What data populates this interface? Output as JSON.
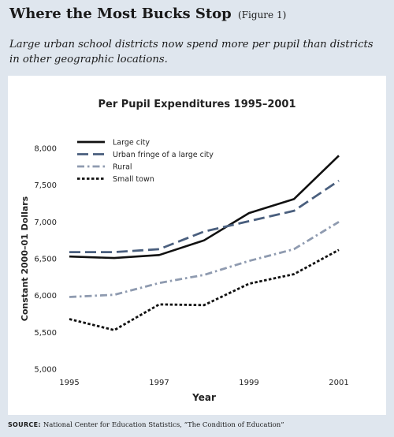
{
  "header": {
    "title": "Where the Most Bucks Stop",
    "figure_tag": "(Figure 1)",
    "subtitle": "Large urban school districts now spend more per pupil than districts in other geographic locations."
  },
  "source": {
    "label": "SOURCE:",
    "text": "National Center for Education Statistics, “The Condition of Education”"
  },
  "colors": {
    "background": "#dfe6ee",
    "panel": "#ffffff",
    "large_city": "#111111",
    "urban_fringe": "#4a5f7e",
    "rural": "#8f9bb0",
    "small_town": "#111111"
  },
  "chart_data": {
    "type": "line",
    "title": "Per Pupil Expenditures 1995–2001",
    "xlabel": "Year",
    "ylabel": "Constant 2000–01 Dollars",
    "x": [
      1995,
      1996,
      1997,
      1998,
      1999,
      2000,
      2001
    ],
    "x_tick_labels": [
      "1995",
      "1997",
      "1999",
      "2001"
    ],
    "x_ticks": [
      1995,
      1997,
      1999,
      2001
    ],
    "ylim": [
      5000,
      8000
    ],
    "y_ticks": [
      5000,
      5500,
      6000,
      6500,
      7000,
      7500,
      8000
    ],
    "y_tick_labels": [
      "5,000",
      "5,500",
      "6,000",
      "6,500",
      "7,000",
      "7,500",
      "8,000"
    ],
    "grid": false,
    "legend_position": "top-left",
    "series": [
      {
        "name": "Large city",
        "style": "solid",
        "color": "#111111",
        "values": [
          6530,
          6510,
          6550,
          6750,
          7120,
          7310,
          7900
        ]
      },
      {
        "name": "Urban fringe of a large city",
        "style": "longdash",
        "color": "#4a5f7e",
        "values": [
          6590,
          6590,
          6630,
          6870,
          7010,
          7150,
          7560
        ]
      },
      {
        "name": "Rural",
        "style": "dashdot",
        "color": "#8f9bb0",
        "values": [
          5980,
          6010,
          6170,
          6280,
          6470,
          6630,
          7000
        ]
      },
      {
        "name": "Small town",
        "style": "dotted",
        "color": "#111111",
        "values": [
          5680,
          5530,
          5880,
          5870,
          6160,
          6290,
          6620
        ]
      }
    ]
  }
}
